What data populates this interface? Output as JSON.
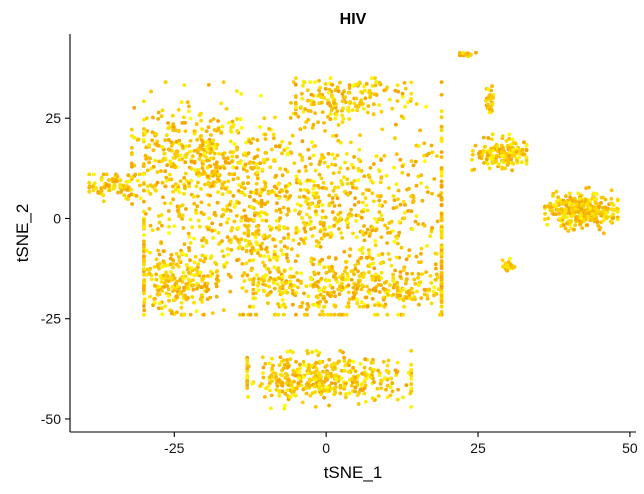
{
  "chart_data": {
    "type": "scatter",
    "title": "HIV",
    "xlabel": "tSNE_1",
    "ylabel": "tSNE_2",
    "xlim": [
      -42,
      51
    ],
    "ylim": [
      -53,
      46
    ],
    "xticks": [
      -25,
      0,
      25,
      50
    ],
    "yticks": [
      -50,
      -25,
      0,
      25
    ],
    "xtick_labels": [
      "-25",
      "0",
      "25",
      "50"
    ],
    "ytick_labels": [
      "-50",
      "-25",
      "0",
      "25"
    ],
    "grid": false,
    "legend": "none",
    "color_low": "#ffff00",
    "color_high": "#f5a000",
    "clusters": [
      {
        "id": "main-body",
        "cx": -5,
        "cy": 2,
        "sx": 15,
        "sy": 13,
        "n": 1200,
        "xr": [
          -30,
          19
        ],
        "yr": [
          -24,
          34
        ]
      },
      {
        "id": "upper-left-arm",
        "cx": -22,
        "cy": 17,
        "sx": 6,
        "sy": 5,
        "n": 260,
        "xr": [
          -32,
          -10
        ],
        "yr": [
          8,
          29
        ]
      },
      {
        "id": "left-tail",
        "cx": -35,
        "cy": 8,
        "sx": 2.5,
        "sy": 2,
        "n": 90,
        "xr": [
          -39,
          -30
        ],
        "yr": [
          2,
          11
        ]
      },
      {
        "id": "lower-left",
        "cx": -25,
        "cy": -16,
        "sx": 3.5,
        "sy": 4,
        "n": 220,
        "xr": [
          -30,
          -18
        ],
        "yr": [
          -24,
          -8
        ]
      },
      {
        "id": "lower-band",
        "cx": 5,
        "cy": -17,
        "sx": 10,
        "sy": 3,
        "n": 320,
        "xr": [
          -12,
          19
        ],
        "yr": [
          -22,
          -8
        ]
      },
      {
        "id": "bottom-cluster",
        "cx": 0,
        "cy": -40,
        "sx": 7.5,
        "sy": 3,
        "n": 420,
        "xr": [
          -13,
          14
        ],
        "yr": [
          -48,
          -33
        ]
      },
      {
        "id": "right-mid",
        "cx": 29,
        "cy": 16,
        "sx": 2.5,
        "sy": 2,
        "n": 160,
        "xr": [
          24,
          33
        ],
        "yr": [
          12,
          21
        ]
      },
      {
        "id": "far-right",
        "cx": 42,
        "cy": 2,
        "sx": 2.8,
        "sy": 2.2,
        "n": 340,
        "xr": [
          36,
          48
        ],
        "yr": [
          -4,
          8
        ]
      },
      {
        "id": "small-right",
        "cx": 30,
        "cy": -12,
        "sx": 0.5,
        "sy": 0.7,
        "n": 35,
        "xr": [
          28,
          31
        ],
        "yr": [
          -14,
          -10
        ]
      },
      {
        "id": "top-right-strip",
        "cx": 23,
        "cy": 41,
        "sx": 0.8,
        "sy": 0.3,
        "n": 25,
        "xr": [
          22,
          25
        ],
        "yr": [
          40,
          42
        ]
      },
      {
        "id": "right-vertical",
        "cx": 27,
        "cy": 29,
        "sx": 0.3,
        "sy": 2,
        "n": 30,
        "xr": [
          26,
          28
        ],
        "yr": [
          25,
          33
        ]
      },
      {
        "id": "upper-middle",
        "cx": 3,
        "cy": 30,
        "sx": 5,
        "sy": 2.5,
        "n": 150,
        "xr": [
          -5,
          14
        ],
        "yr": [
          24,
          35
        ]
      }
    ]
  }
}
